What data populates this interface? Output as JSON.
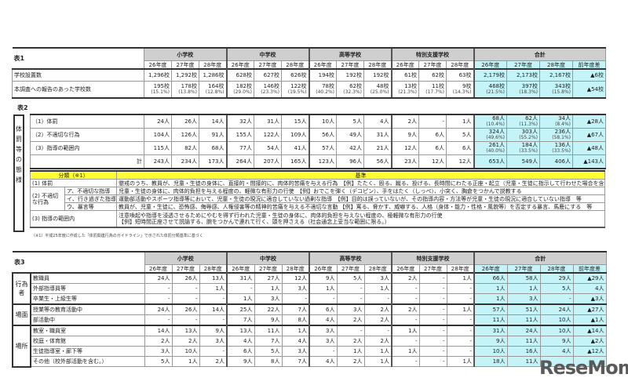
{
  "groups": [
    "小学校",
    "中学校",
    "高等学校",
    "特別支援学校",
    "合計"
  ],
  "years": [
    "26年度",
    "27年度",
    "28年度"
  ],
  "total_years": [
    "26年度",
    "27年度",
    "28年度",
    "前年度差"
  ],
  "colors": {
    "header_gray": "#cfcfcf",
    "total_cyan": "#c4f4f8",
    "criteria_yellow": "#ffff33"
  },
  "table1": {
    "title": "表1",
    "rows": [
      {
        "label": "学校設置数",
        "cells": [
          "1,296校",
          "1,292校",
          "1,286校",
          "628校",
          "627校",
          "626校",
          "194校",
          "192校",
          "192校",
          "61校",
          "62校",
          "63校",
          "2,179校",
          "2,173校",
          "2,167校",
          "▲6校"
        ]
      },
      {
        "label": "本調査への報告のあった学校数",
        "cells": [
          [
            "195校",
            "(15.1%)"
          ],
          [
            "178校",
            "(13.8%)"
          ],
          [
            "164校",
            "(12.8%)"
          ],
          [
            "182校",
            "(29.0%)"
          ],
          [
            "146校",
            "(23.3%)"
          ],
          [
            "122校",
            "(19.5%)"
          ],
          [
            "78校",
            "(40.2%)"
          ],
          [
            "62校",
            "(32.3%)"
          ],
          [
            "48校",
            "(25.0%)"
          ],
          [
            "13校",
            "(21.3%)"
          ],
          [
            "11校",
            "(17.7%)"
          ],
          [
            "9校",
            "(14.3%)"
          ],
          [
            "468校",
            "(21.5%)"
          ],
          [
            "397校",
            "(18.3%)"
          ],
          [
            "343校",
            "(15.8%)"
          ],
          "▲54校"
        ]
      }
    ]
  },
  "table2": {
    "title": "表2",
    "side_label": "体罰等の態様",
    "rows": [
      {
        "label": "（1）体罰",
        "cells": [
          "24人",
          "26人",
          "14人",
          "32人",
          "31人",
          "15人",
          "10人",
          "5人",
          "4人",
          "2人",
          "-",
          "1人",
          [
            "68人",
            "(10.4%)"
          ],
          [
            "62人",
            "(11.3%)"
          ],
          [
            "34人",
            "(8.4%)"
          ],
          "▲28人"
        ]
      },
      {
        "label": "（2）不適切な行為",
        "cells": [
          "104人",
          "126人",
          "91人",
          "155人",
          "122人",
          "109人",
          "56人",
          "49人",
          "31人",
          "9人",
          "6人",
          "5人",
          [
            "324人",
            "(49.6%)"
          ],
          [
            "303人",
            "(55.2%)"
          ],
          [
            "236人",
            "(58.1%)"
          ],
          "▲67人"
        ]
      },
      {
        "label": "（3）指導の範囲内",
        "cells": [
          "115人",
          "82人",
          "68人",
          "77人",
          "54人",
          "41人",
          "57人",
          "42人",
          "21人",
          "12人",
          "6人",
          "6人",
          [
            "261人",
            "(40.0%)"
          ],
          [
            "184人",
            "(33.5%)"
          ],
          [
            "136人",
            "(33.5%)"
          ],
          "▲48人"
        ]
      },
      {
        "label": "計",
        "cells": [
          "243人",
          "234人",
          "173人",
          "264人",
          "207人",
          "165人",
          "123人",
          "96人",
          "56人",
          "23人",
          "12人",
          "12人",
          "653人",
          "549人",
          "406人",
          "▲143人"
        ]
      }
    ],
    "classification": {
      "header_left": "分類（※1）",
      "header_right": "基準",
      "rows": [
        {
          "cat": "(1) 体罰",
          "sub": "",
          "text": "懲戒のうち、教員が、児童・生徒の身体に、直接的・間接的に、肉体的苦痛を与える行為　【例】たたく、殴る、蹴る、投げる、長時間にわたる正座・起立（児童・生徒に指示して行わせた場合を含む。）"
        },
        {
          "cat": "(2) 不適切な行為",
          "sub": "ア、不適切な指導",
          "text": "児童・生徒の身体に、肉体的負担を与える程度の、軽微な有形力の行使　【例】おでこを弾く（デコピン）、手をはたく（しっぺ）、小突く、胸倉をつかんで説教する"
        },
        {
          "cat": "",
          "sub": "イ、行き過ぎた指導",
          "text": "運動部活動やスポーツ指導等において、児童・生徒の現況に適合していない過剰な指導　【例】目的は誤っていないが、その指導内容・方法等が児童・生徒の現況に適合していない指導　等"
        },
        {
          "cat": "",
          "sub": "ウ、暴言等",
          "text": "教員が、児童・生徒に、恐怖感、侮辱感、人権侵害等の精神的苦痛を与える不適切な言動 【例】罵る、脅かす、威嚇する、人格（身体・能力・性格・風貌等）を否定する暴言、馬鹿にする　等"
        },
        {
          "cat": "(3) 指導の範囲内",
          "sub": "",
          "text": "注意喚起や指導を浸透させるためにやむを得ず行われた児童・生徒の身体に、肉体的負担を与えない程度の、極軽微な有形力の行使",
          "text2": "【例】短時間正座させて説諭する、腕をつかんで連れて行く、頭を押さえる（社会通念上妥当な範囲に限る。）"
        }
      ]
    },
    "footnote": "（※1）平成25年度に作成した「体罰関連行為のガイドライン」で示された体罰分類基準に基づく"
  },
  "table3": {
    "title": "表3",
    "sections": [
      {
        "side_label": "行為者",
        "rows": [
          {
            "label": "教職員",
            "cells": [
              "24人",
              "26人",
              "13人",
              "31人",
              "27人",
              "12人",
              "9人",
              "5人",
              "3人",
              "2人",
              "-",
              "1人",
              "66人",
              "58人",
              "29人",
              "▲29人"
            ]
          },
          {
            "label": "外部指導員等",
            "cells": [
              "-",
              "-",
              "1人",
              "-",
              "1人",
              "3人",
              "1人",
              "-",
              "1人",
              "-",
              "-",
              "-",
              "1人",
              "1人",
              "5人",
              "4人"
            ]
          },
          {
            "label": "卒業生・上級生等",
            "cells": [
              "-",
              "-",
              "-",
              "1人",
              "3人",
              "-",
              "-",
              "-",
              "-",
              "-",
              "-",
              "-",
              "1人",
              "3人",
              "-",
              "▲3人"
            ]
          }
        ]
      },
      {
        "side_label": "場面",
        "rows": [
          {
            "label": "授業等の教育活動中",
            "cells": [
              "24人",
              "26人",
              "14人",
              "25人",
              "22人",
              "7人",
              "6人",
              "3人",
              "2人",
              "2人",
              "-",
              "1人",
              "57人",
              "51人",
              "24人",
              "▲27人"
            ]
          },
          {
            "label": "部活動中",
            "cells": [
              "-",
              "-",
              "-",
              "7人",
              "9人",
              "8人",
              "4人",
              "2人",
              "2人",
              "-",
              "-",
              "-",
              "11人",
              "11人",
              "10人",
              "▲1人"
            ]
          }
        ]
      },
      {
        "side_label": "場所",
        "rows": [
          {
            "label": "教室・職員室",
            "cells": [
              "14人",
              "13人",
              "9人",
              "13人",
              "11人",
              "1人",
              "3人",
              "-",
              "-",
              "1人",
              "-",
              "-",
              "31人",
              "24人",
              "10人",
              "▲14人"
            ]
          },
          {
            "label": "校庭・体育館",
            "cells": [
              "2人",
              "2人",
              "3人",
              "4人",
              "7人",
              "4人",
              "3人",
              "2人",
              "2人",
              "-",
              "-",
              "-",
              "9人",
              "11人",
              "9人",
              "▲2人"
            ]
          },
          {
            "label": "生徒指導室・廊下等",
            "cells": [
              "3人",
              "10人",
              "-",
              "6人",
              "5人",
              "3人",
              "-",
              "1人",
              "1人",
              "1人",
              "-",
              "-",
              "10人",
              "16人",
              "4人",
              "▲12人"
            ]
          },
          {
            "label": "その他（校外部活動を含む。）",
            "cells": [
              "5人",
              "1人",
              "2人",
              "9人",
              "8人",
              "7人",
              "4人",
              "2人",
              "1人",
              "-",
              "-",
              "1人",
              "18人",
              "11人",
              "",
              ""
            ]
          }
        ]
      }
    ]
  },
  "watermark": "ReseMom"
}
